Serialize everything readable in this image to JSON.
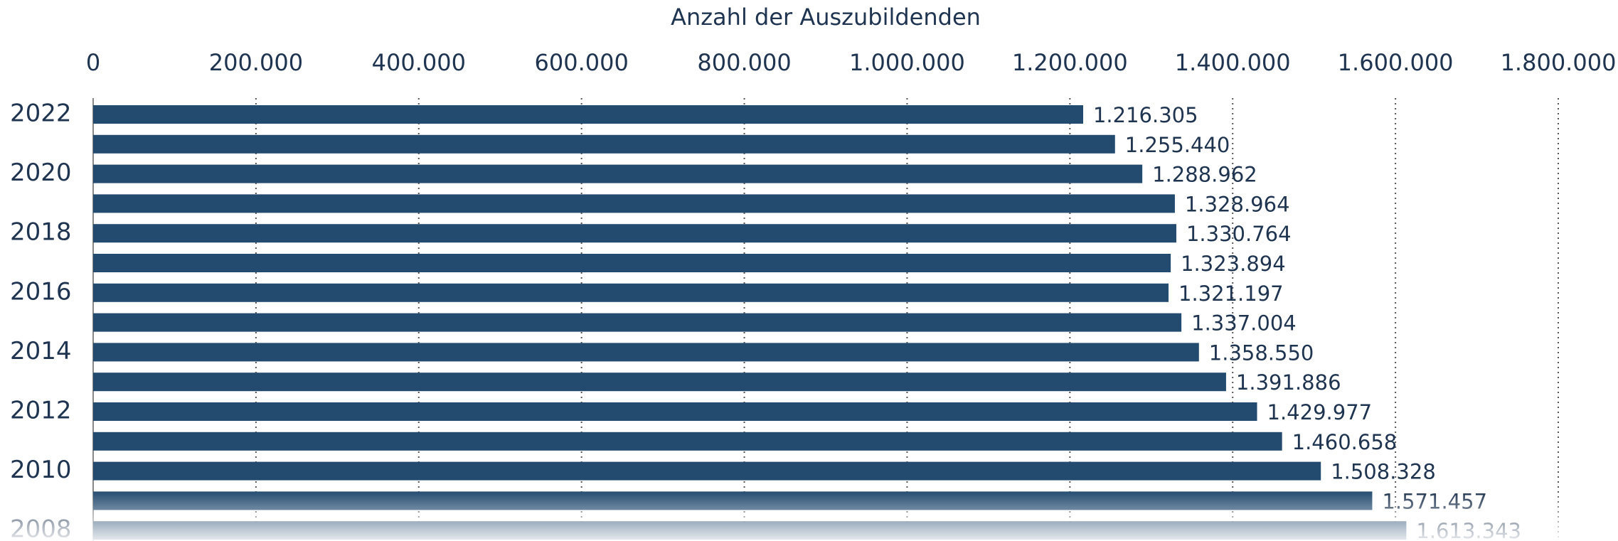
{
  "chart_data": {
    "type": "barh",
    "title": "Anzahl der Auszubildenden",
    "categories": [
      "2022",
      null,
      "2020",
      null,
      "2018",
      null,
      "2016",
      null,
      "2014",
      null,
      "2012",
      null,
      "2010",
      null,
      "2008"
    ],
    "values": [
      1216305,
      1255440,
      1288962,
      1328964,
      1330764,
      1323894,
      1321197,
      1337004,
      1358550,
      1391886,
      1429977,
      1460658,
      1508328,
      1571457,
      1613343
    ],
    "value_labels": [
      "1.216.305",
      "1.255.440",
      "1.288.962",
      "1.328.964",
      "1.330.764",
      "1.323.894",
      "1.321.197",
      "1.337.004",
      "1.358.550",
      "1.391.886",
      "1.429.977",
      "1.460.658",
      "1.508.328",
      "1.571.457",
      "1.613.343"
    ],
    "color": "#234a6f",
    "xlim": [
      0,
      1800000
    ],
    "xticks": [
      0,
      {
        "value": 200000,
        "label": "200.000"
      },
      {
        "value": 400000,
        "label": "400.000"
      },
      {
        "value": 600000,
        "label": "600.000"
      },
      {
        "value": 800000,
        "label": "800.000"
      },
      {
        "value": 1000000,
        "label": "1.000.000"
      },
      {
        "value": 1200000,
        "label": "1.200.000"
      },
      {
        "value": 1400000,
        "label": "1.400.000"
      },
      {
        "value": 1600000,
        "label": "1.600.000"
      },
      {
        "value": 1800000,
        "label": "1.800.000"
      }
    ],
    "grid": true
  }
}
